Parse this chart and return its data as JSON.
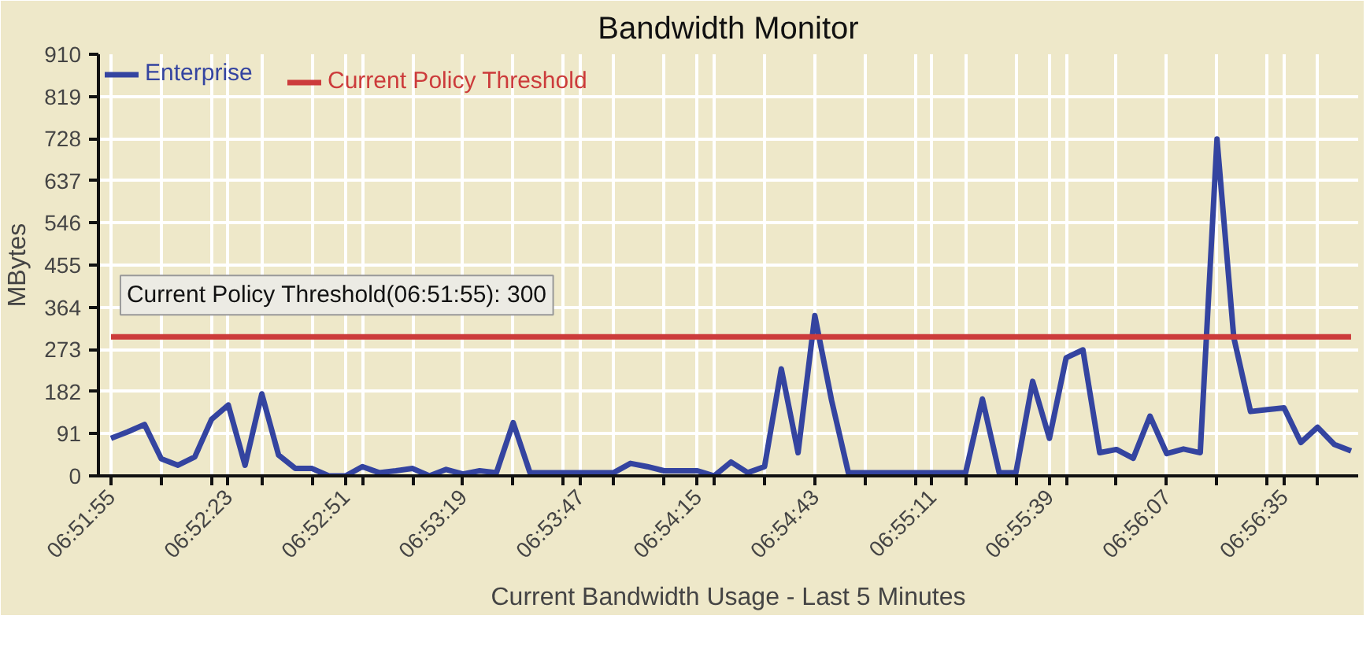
{
  "chart_data": {
    "type": "line",
    "title": "Bandwidth Monitor",
    "xlabel": "Current Bandwidth Usage - Last 5 Minutes",
    "ylabel": "MBytes",
    "x": [
      6.865278,
      6.866389,
      6.8675,
      6.868611,
      6.869722,
      6.870834,
      6.871945,
      6.873056,
      6.874167,
      6.875278,
      6.876389,
      6.8775,
      6.878611,
      6.879722,
      6.880834,
      6.881945,
      6.883056,
      6.884167,
      6.885278,
      6.886389,
      6.8875,
      6.888611,
      6.889722,
      6.890834,
      6.891945,
      6.893056,
      6.894167,
      6.895278,
      6.896389,
      6.8975,
      6.898611,
      6.899722,
      6.900834,
      6.901945,
      6.903056,
      6.904167,
      6.905278,
      6.906389,
      6.9075,
      6.908611,
      6.909722,
      6.910834,
      6.911945,
      6.913056,
      6.914167,
      6.915278,
      6.916389,
      6.9175,
      6.918611,
      6.919722,
      6.920834,
      6.921945,
      6.923056,
      6.924167,
      6.925278,
      6.926389,
      6.9275,
      6.928611,
      6.929722,
      6.930834,
      6.931945,
      6.933056,
      6.934167,
      6.935278,
      6.936389,
      6.9375,
      6.938611,
      6.939722,
      6.940834,
      6.941945,
      6.943056,
      6.944167,
      6.945278,
      6.946389,
      6.9475
    ],
    "series": [
      {
        "name": "Enterprise",
        "color": "#3444a0",
        "values": [
          81,
          95,
          111,
          37,
          23,
          41,
          122,
          153,
          23,
          177,
          45,
          16,
          16,
          0,
          0,
          20,
          7,
          11,
          16,
          0,
          14,
          4,
          11,
          7,
          115,
          7,
          7,
          7,
          7,
          7,
          7,
          27,
          20,
          11,
          11,
          11,
          0,
          30,
          7,
          20,
          231,
          50,
          346,
          163,
          7,
          7,
          7,
          7,
          7,
          7,
          7,
          7,
          166,
          7,
          7,
          204,
          81,
          255,
          272,
          50,
          57,
          38,
          129,
          48,
          58,
          50,
          727,
          299,
          139,
          143,
          147,
          72,
          105,
          68,
          54
        ]
      },
      {
        "name": "Current Policy Threshold",
        "color": "#cc3b3b",
        "x": [
          6.865278,
          6.9475
        ],
        "values": [
          300,
          300
        ]
      }
    ],
    "annotations": [
      {
        "text": "Current Policy Threshold(06:51:55): 300",
        "x": 6.865278,
        "y": 300
      }
    ],
    "xlim": [
      6.864445,
      6.947972
    ],
    "ylim": [
      0,
      910
    ],
    "yticks": [
      0,
      91,
      182,
      273,
      364,
      455,
      546,
      637,
      728,
      819,
      910
    ],
    "xticks": [
      {
        "value": 6.865278,
        "label": "06:51:55"
      },
      {
        "value": 6.868611,
        "label": null
      },
      {
        "value": 6.871945,
        "label": null
      },
      {
        "value": 6.873056,
        "label": "06:52:23"
      },
      {
        "value": 6.875278,
        "label": null
      },
      {
        "value": 6.878611,
        "label": null
      },
      {
        "value": 6.880834,
        "label": "06:52:51"
      },
      {
        "value": 6.881945,
        "label": null
      },
      {
        "value": 6.885278,
        "label": null
      },
      {
        "value": 6.888611,
        "label": "06:53:19"
      },
      {
        "value": 6.891945,
        "label": null
      },
      {
        "value": 6.895278,
        "label": null
      },
      {
        "value": 6.896389,
        "label": "06:53:47"
      },
      {
        "value": 6.898611,
        "label": null
      },
      {
        "value": 6.901945,
        "label": null
      },
      {
        "value": 6.904167,
        "label": "06:54:15"
      },
      {
        "value": 6.905278,
        "label": null
      },
      {
        "value": 6.908611,
        "label": null
      },
      {
        "value": 6.911945,
        "label": "06:54:43"
      },
      {
        "value": 6.915278,
        "label": null
      },
      {
        "value": 6.918611,
        "label": null
      },
      {
        "value": 6.919722,
        "label": "06:55:11"
      },
      {
        "value": 6.921945,
        "label": null
      },
      {
        "value": 6.925278,
        "label": null
      },
      {
        "value": 6.9275,
        "label": "06:55:39"
      },
      {
        "value": 6.928611,
        "label": null
      },
      {
        "value": 6.931945,
        "label": null
      },
      {
        "value": 6.935278,
        "label": "06:56:07"
      },
      {
        "value": 6.938611,
        "label": null
      },
      {
        "value": 6.941945,
        "label": null
      },
      {
        "value": 6.943056,
        "label": "06:56:35"
      },
      {
        "value": 6.945278,
        "label": null
      }
    ],
    "grid": true,
    "legend": "top left",
    "marker": "none",
    "line_style": "solid"
  }
}
